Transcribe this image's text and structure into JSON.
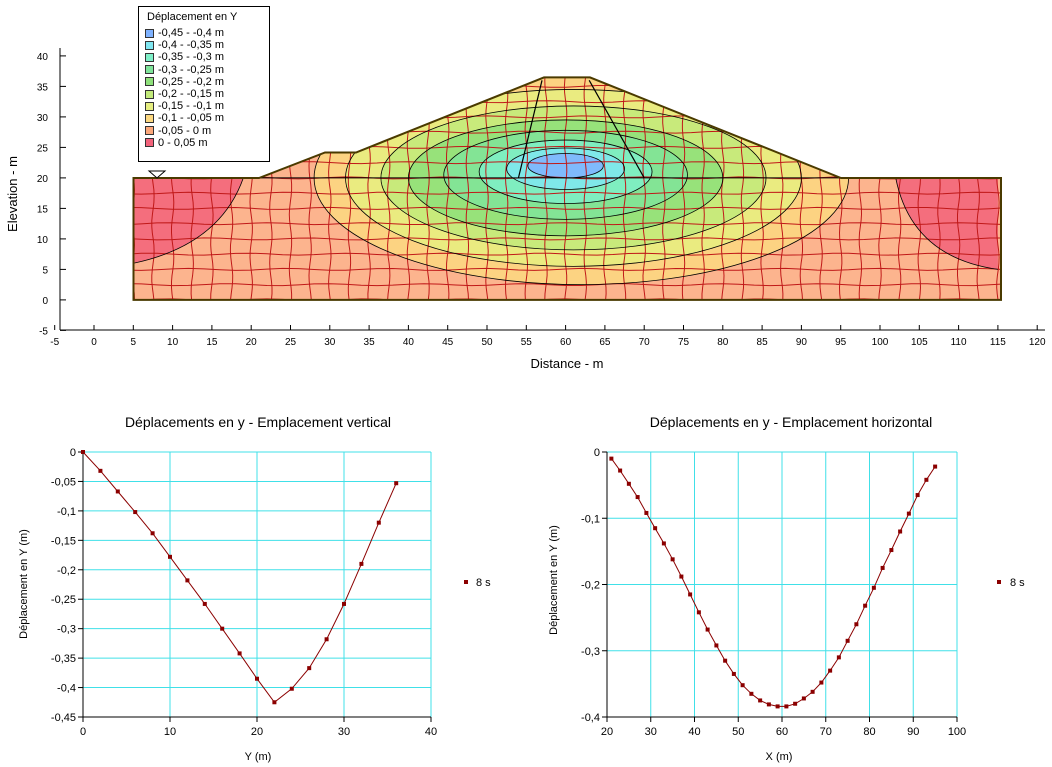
{
  "section": {
    "legend_title": "Déplacement en Y",
    "legend_items": [
      {
        "label": "-0,45 - -0,4 m",
        "color": "#7fb2ff"
      },
      {
        "label": "-0,4 - -0,35 m",
        "color": "#7fe6f0"
      },
      {
        "label": "-0,35 - -0,3 m",
        "color": "#7ff0c8"
      },
      {
        "label": "-0,3 - -0,25 m",
        "color": "#7fe49a"
      },
      {
        "label": "-0,25 - -0,2 m",
        "color": "#8ee07a"
      },
      {
        "label": "-0,2 - -0,15 m",
        "color": "#c2ea7a"
      },
      {
        "label": "-0,15 - -0,1 m",
        "color": "#e6ee80"
      },
      {
        "label": "-0,1 - -0,05 m",
        "color": "#fcd880"
      },
      {
        "label": "-0,05 - 0 m",
        "color": "#fca77a"
      },
      {
        "label": "0 - 0,05 m",
        "color": "#f2627a"
      }
    ],
    "xlabel": "Distance - m",
    "ylabel": "Elevation - m",
    "xticks": [
      "-5",
      "0",
      "5",
      "10",
      "15",
      "20",
      "25",
      "30",
      "35",
      "40",
      "45",
      "50",
      "55",
      "60",
      "65",
      "70",
      "75",
      "80",
      "85",
      "90",
      "95",
      "100",
      "105",
      "110",
      "115",
      "120"
    ],
    "yticks": [
      "-5",
      "0",
      "5",
      "10",
      "15",
      "20",
      "25",
      "30",
      "35",
      "40"
    ]
  },
  "chart_data": [
    {
      "type": "line",
      "title": "Déplacements en y - Emplacement vertical",
      "xlabel": "Y (m)",
      "ylabel": "Déplacement en Y (m)",
      "xlim": [
        0,
        40
      ],
      "ylim": [
        -0.45,
        0
      ],
      "xticks": [
        "0",
        "10",
        "20",
        "30",
        "40"
      ],
      "yticks": [
        "0",
        "-0,05",
        "-0,1",
        "-0,15",
        "-0,2",
        "-0,25",
        "-0,3",
        "-0,35",
        "-0,4",
        "-0,45"
      ],
      "grid": true,
      "legend": "right",
      "series": [
        {
          "name": "8 s",
          "color": "#8b0000",
          "x": [
            0,
            2,
            4,
            6,
            8,
            10,
            12,
            14,
            16,
            18,
            20,
            22,
            24,
            26,
            28,
            30,
            32,
            34,
            36
          ],
          "y": [
            0,
            -0.032,
            -0.067,
            -0.102,
            -0.138,
            -0.178,
            -0.218,
            -0.258,
            -0.3,
            -0.342,
            -0.385,
            -0.425,
            -0.402,
            -0.367,
            -0.318,
            -0.258,
            -0.19,
            -0.12,
            -0.053
          ]
        }
      ]
    },
    {
      "type": "line",
      "title": "Déplacements en y - Emplacement horizontal",
      "xlabel": "X (m)",
      "ylabel": "Déplacement en Y (m)",
      "xlim": [
        20,
        100
      ],
      "ylim": [
        -0.4,
        0
      ],
      "xticks": [
        "20",
        "30",
        "40",
        "50",
        "60",
        "70",
        "80",
        "90",
        "100"
      ],
      "yticks": [
        "0",
        "-0,1",
        "-0,2",
        "-0,3",
        "-0,4"
      ],
      "grid": true,
      "legend": "right",
      "series": [
        {
          "name": "8 s",
          "color": "#8b0000",
          "x": [
            21,
            23,
            25,
            27,
            29,
            31,
            33,
            35,
            37,
            39,
            41,
            43,
            45,
            47,
            49,
            51,
            53,
            55,
            57,
            59,
            61,
            63,
            65,
            67,
            69,
            71,
            73,
            75,
            77,
            79,
            81,
            83,
            85,
            87,
            89,
            91,
            93,
            95
          ],
          "y": [
            -0.01,
            -0.028,
            -0.048,
            -0.068,
            -0.092,
            -0.115,
            -0.138,
            -0.162,
            -0.188,
            -0.215,
            -0.242,
            -0.268,
            -0.292,
            -0.315,
            -0.335,
            -0.352,
            -0.365,
            -0.375,
            -0.381,
            -0.384,
            -0.384,
            -0.38,
            -0.372,
            -0.362,
            -0.348,
            -0.33,
            -0.31,
            -0.285,
            -0.26,
            -0.232,
            -0.205,
            -0.175,
            -0.148,
            -0.12,
            -0.093,
            -0.065,
            -0.042,
            -0.022
          ]
        }
      ]
    }
  ]
}
